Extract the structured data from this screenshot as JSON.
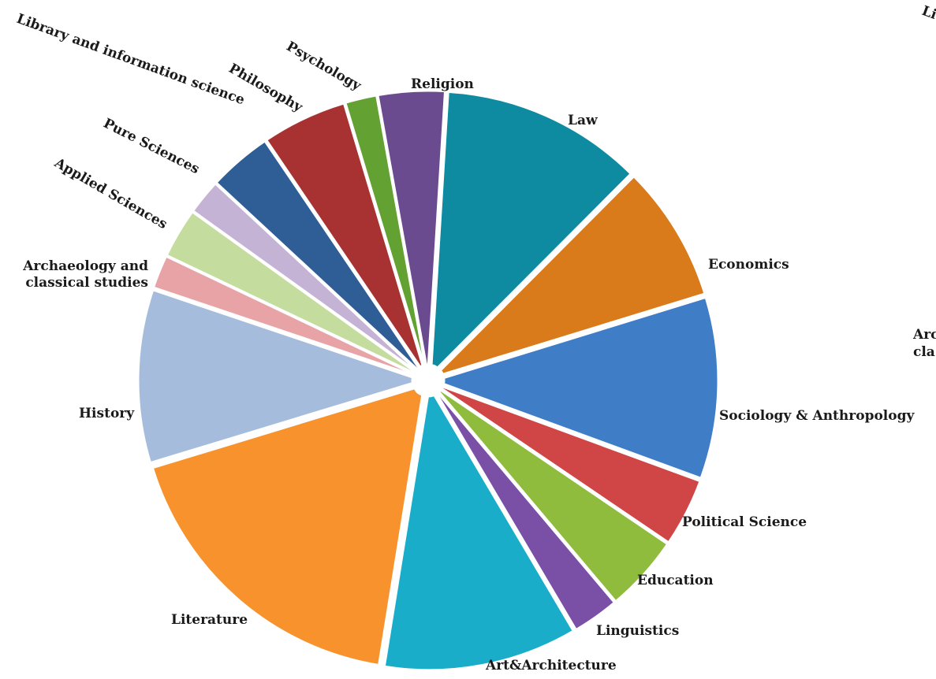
{
  "chart_data": {
    "type": "pie",
    "categories": [
      "Law",
      "Economics",
      "Sociology & Anthropology",
      "Political Science",
      "Education",
      "Linguistics",
      "Art&Architecture",
      "Literature",
      "History",
      "Archaeology and classical studies",
      "Applied Sciences",
      "Pure Sciences",
      "Library and information science",
      "Philosophy",
      "Psychology",
      "Religion"
    ],
    "values": [
      12.1,
      8.2,
      10.9,
      4.1,
      4.6,
      2.8,
      11.6,
      18.7,
      10.4,
      2.0,
      3.0,
      2.1,
      3.8,
      5.1,
      1.9,
      4.0
    ],
    "colors": [
      "#0e8ba0",
      "#d97a1b",
      "#3f7ec7",
      "#d04545",
      "#8fbc3c",
      "#7a4fa6",
      "#19adc9",
      "#f7922c",
      "#a6bcdd",
      "#e8a3a6",
      "#c5dc9f",
      "#c4b3d4",
      "#2f5d95",
      "#a83232",
      "#63a132",
      "#6b4b8f"
    ],
    "side_fragments": [
      "Li",
      "Arc",
      "cla"
    ]
  }
}
